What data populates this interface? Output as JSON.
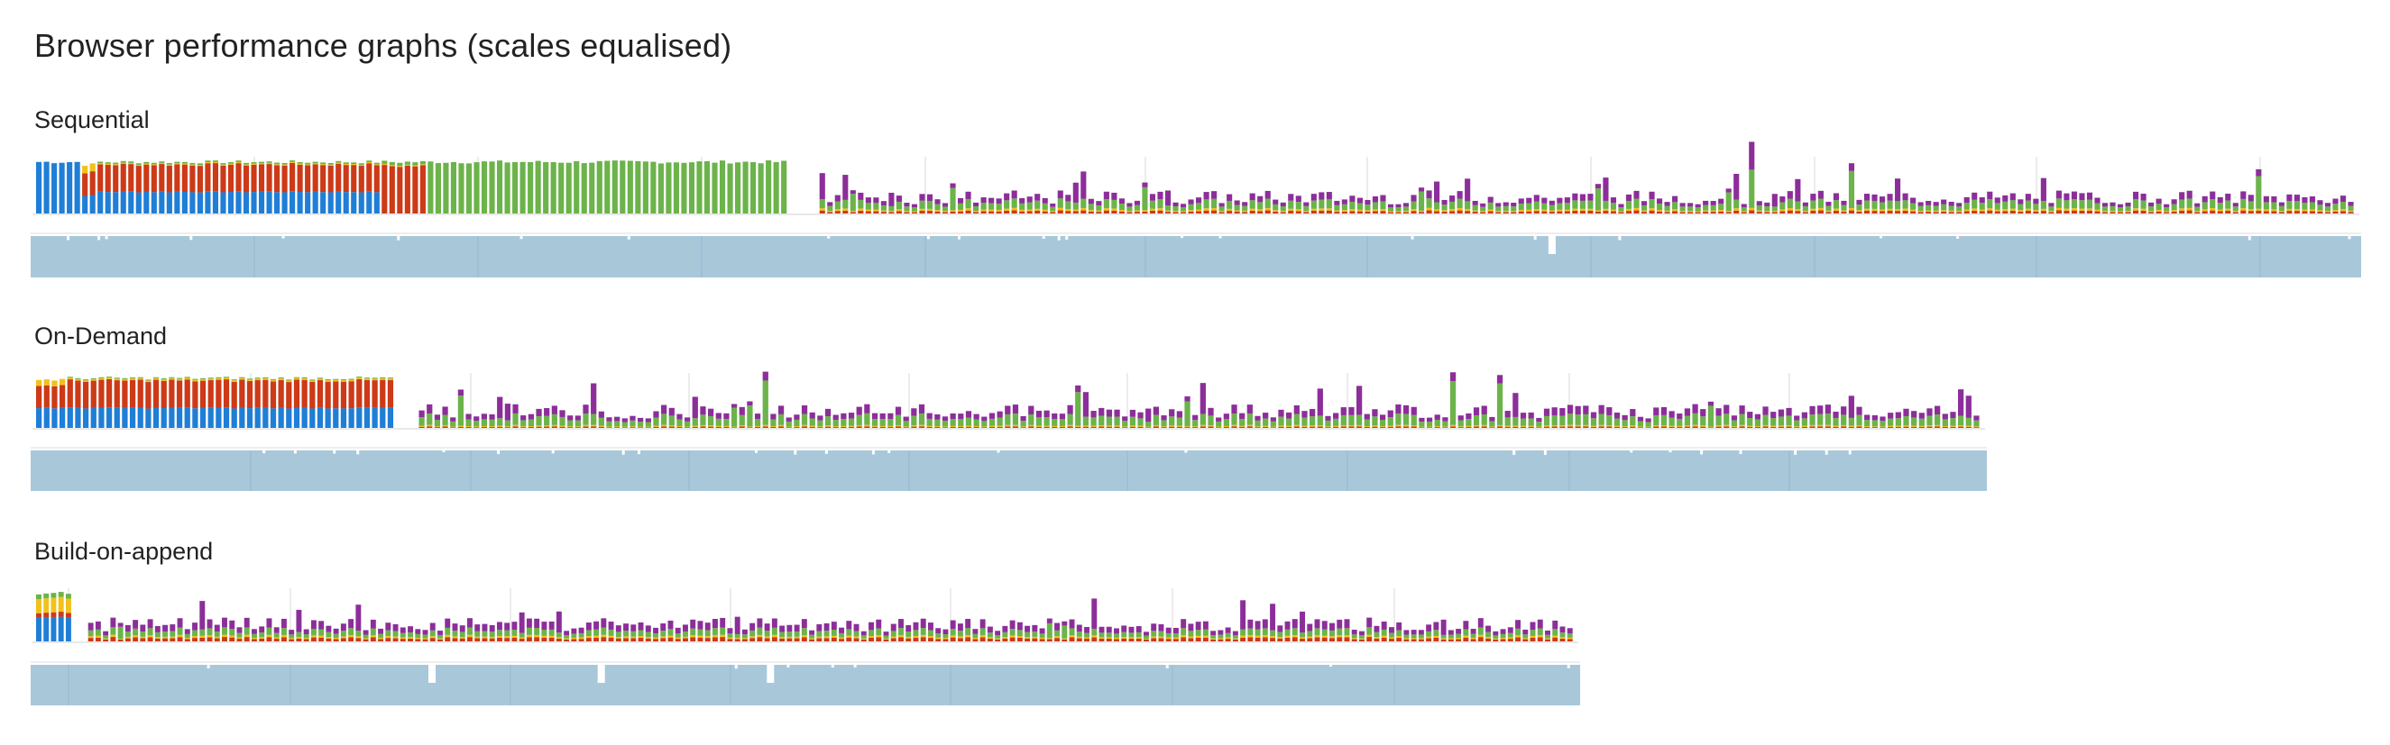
{
  "page": {
    "title": "Browser performance graphs (scales equalised)"
  },
  "colors": {
    "blue": "#1f7ed6",
    "red": "#cc3a18",
    "yellow": "#f2c11b",
    "green": "#6bb34a",
    "purple": "#8c2e9a",
    "fps_band": "#a8c8da",
    "grid": "#d8d8d8"
  },
  "sections": [
    {
      "title": "Sequential"
    },
    {
      "title": "On-Demand"
    },
    {
      "title": "Build-on-append"
    }
  ],
  "chart_data": [
    {
      "type": "bar",
      "title": "Sequential",
      "series": [
        "blue",
        "red",
        "yellow",
        "green",
        "purple"
      ],
      "phases": [
        {
          "frames": 6,
          "blue": 1.0,
          "red": 0,
          "yellow": 0,
          "green": 0,
          "purple": 0
        },
        {
          "frames": 2,
          "blue": 0.35,
          "red": 0.45,
          "yellow": 0.15,
          "green": 0,
          "purple": 0
        },
        {
          "frames": 37,
          "blue": 0.42,
          "red": 0.53,
          "yellow": 0.02,
          "green": 0.03,
          "purple": 0
        },
        {
          "frames": 6,
          "blue": 0,
          "red": 0.92,
          "yellow": 0.02,
          "green": 0.06,
          "purple": 0
        },
        {
          "frames": 47,
          "blue": 0,
          "red": 0,
          "yellow": 0,
          "green": 1.0,
          "purple": 0
        },
        {
          "frames": 4,
          "blue": 0,
          "red": 0,
          "yellow": 0,
          "green": 0,
          "purple": 0
        },
        {
          "frames": 200,
          "blue": 0,
          "red": 0.04,
          "yellow": 0.03,
          "green": 0.12,
          "purple": 0.1
        }
      ],
      "fps_dips": [
        0.652
      ]
    },
    {
      "type": "bar",
      "title": "On-Demand",
      "series": [
        "blue",
        "red",
        "yellow",
        "green",
        "purple"
      ],
      "phases": [
        {
          "frames": 4,
          "blue": 0.4,
          "red": 0.45,
          "yellow": 0.12,
          "green": 0,
          "purple": 0
        },
        {
          "frames": 42,
          "blue": 0.4,
          "red": 0.55,
          "yellow": 0.03,
          "green": 0.02,
          "purple": 0
        },
        {
          "frames": 3,
          "blue": 0,
          "red": 0,
          "yellow": 0,
          "green": 0,
          "purple": 0
        },
        {
          "frames": 200,
          "blue": 0,
          "red": 0.02,
          "yellow": 0.02,
          "green": 0.15,
          "purple": 0.12
        }
      ],
      "fps_dips": []
    },
    {
      "type": "bar",
      "title": "Build-on-append",
      "series": [
        "blue",
        "red",
        "yellow",
        "green",
        "purple"
      ],
      "phases": [
        {
          "frames": 5,
          "blue": 0.5,
          "red": 0.1,
          "yellow": 0.3,
          "green": 0.1,
          "purple": 0
        },
        {
          "frames": 2,
          "blue": 0,
          "red": 0,
          "yellow": 0,
          "green": 0,
          "purple": 0
        },
        {
          "frames": 200,
          "blue": 0,
          "red": 0.06,
          "yellow": 0.03,
          "green": 0.1,
          "purple": 0.13
        }
      ],
      "fps_dips": [
        0.255,
        0.365,
        0.475
      ]
    }
  ]
}
